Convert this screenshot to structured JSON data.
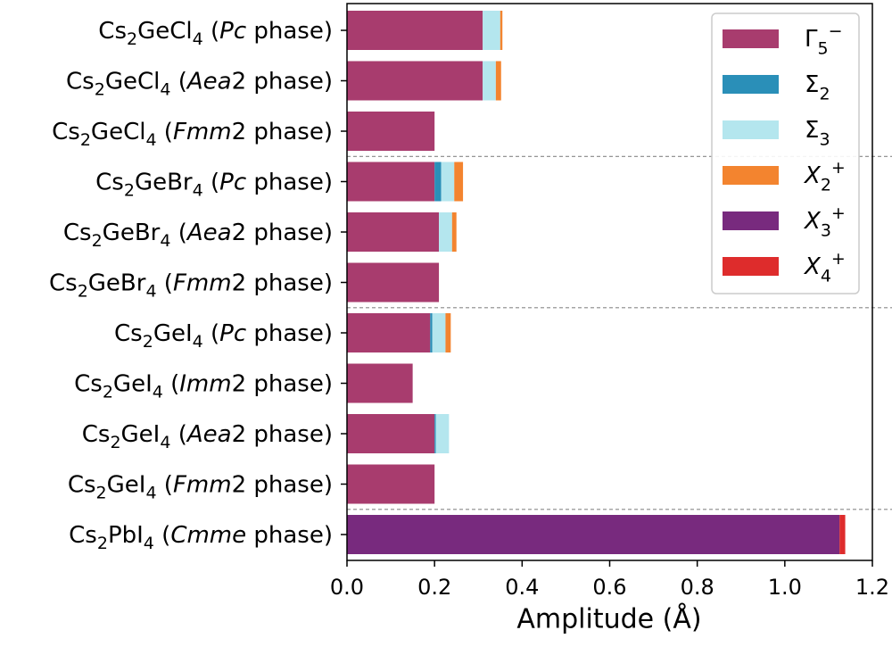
{
  "chart_data": {
    "type": "bar",
    "orientation": "horizontal",
    "stacked": true,
    "xlabel": "Amplitude (Å)",
    "xlim": [
      0,
      1.2
    ],
    "xticks": [
      "0.0",
      "0.2",
      "0.4",
      "0.6",
      "0.8",
      "1.0",
      "1.2"
    ],
    "tick_values": [
      0,
      0.2,
      0.4,
      0.6,
      0.8,
      1.0,
      1.2
    ],
    "categories": [
      {
        "formula": [
          [
            "Cs",
            "n"
          ],
          [
            "2",
            "sub"
          ],
          [
            "GeCl",
            "n"
          ],
          [
            "4",
            "sub"
          ]
        ],
        "open": " (",
        "space": "Pc",
        "close": " phase)"
      },
      {
        "formula": [
          [
            "Cs",
            "n"
          ],
          [
            "2",
            "sub"
          ],
          [
            "GeCl",
            "n"
          ],
          [
            "4",
            "sub"
          ]
        ],
        "open": " (",
        "space": "Aea",
        "space_tail": "2",
        "close": " phase)"
      },
      {
        "formula": [
          [
            "Cs",
            "n"
          ],
          [
            "2",
            "sub"
          ],
          [
            "GeCl",
            "n"
          ],
          [
            "4",
            "sub"
          ]
        ],
        "open": " (",
        "space": "Fmm",
        "space_tail": "2",
        "close": " phase)"
      },
      {
        "formula": [
          [
            "Cs",
            "n"
          ],
          [
            "2",
            "sub"
          ],
          [
            "GeBr",
            "n"
          ],
          [
            "4",
            "sub"
          ]
        ],
        "open": " (",
        "space": "Pc",
        "close": " phase)"
      },
      {
        "formula": [
          [
            "Cs",
            "n"
          ],
          [
            "2",
            "sub"
          ],
          [
            "GeBr",
            "n"
          ],
          [
            "4",
            "sub"
          ]
        ],
        "open": " (",
        "space": "Aea",
        "space_tail": "2",
        "close": " phase)"
      },
      {
        "formula": [
          [
            "Cs",
            "n"
          ],
          [
            "2",
            "sub"
          ],
          [
            "GeBr",
            "n"
          ],
          [
            "4",
            "sub"
          ]
        ],
        "open": " (",
        "space": "Fmm",
        "space_tail": "2",
        "close": " phase)"
      },
      {
        "formula": [
          [
            "Cs",
            "n"
          ],
          [
            "2",
            "sub"
          ],
          [
            "GeI",
            "n"
          ],
          [
            "4",
            "sub"
          ]
        ],
        "open": " (",
        "space": "Pc",
        "close": " phase)"
      },
      {
        "formula": [
          [
            "Cs",
            "n"
          ],
          [
            "2",
            "sub"
          ],
          [
            "GeI",
            "n"
          ],
          [
            "4",
            "sub"
          ]
        ],
        "open": " (",
        "space": "Imm",
        "space_tail": "2",
        "close": " phase)"
      },
      {
        "formula": [
          [
            "Cs",
            "n"
          ],
          [
            "2",
            "sub"
          ],
          [
            "GeI",
            "n"
          ],
          [
            "4",
            "sub"
          ]
        ],
        "open": " (",
        "space": "Aea",
        "space_tail": "2",
        "close": " phase)"
      },
      {
        "formula": [
          [
            "Cs",
            "n"
          ],
          [
            "2",
            "sub"
          ],
          [
            "GeI",
            "n"
          ],
          [
            "4",
            "sub"
          ]
        ],
        "open": " (",
        "space": "Fmm",
        "space_tail": "2",
        "close": " phase)"
      },
      {
        "formula": [
          [
            "Cs",
            "n"
          ],
          [
            "2",
            "sub"
          ],
          [
            "PbI",
            "n"
          ],
          [
            "4",
            "sub"
          ]
        ],
        "open": " (",
        "space": "Cmme",
        "close": " phase)"
      }
    ],
    "group_separators_after": [
      2,
      5,
      9
    ],
    "series": [
      {
        "name": "Γ5−",
        "color": "#a83c6e",
        "label_parts": [
          [
            "Γ",
            "n"
          ],
          [
            "5",
            "sub"
          ],
          [
            "−",
            "sup"
          ]
        ],
        "values": [
          0.31,
          0.31,
          0.2,
          0.2,
          0.21,
          0.21,
          0.19,
          0.15,
          0.2,
          0.2,
          0.0
        ]
      },
      {
        "name": "Σ2",
        "color": "#2a8fb8",
        "label_parts": [
          [
            "Σ",
            "n"
          ],
          [
            "2",
            "sub"
          ]
        ],
        "values": [
          0.0,
          0.0,
          0.0,
          0.015,
          0.0,
          0.0,
          0.005,
          0.0,
          0.003,
          0.0,
          0.0
        ]
      },
      {
        "name": "Σ3",
        "color": "#b4e6ee",
        "label_parts": [
          [
            "Σ",
            "n"
          ],
          [
            "3",
            "sub"
          ]
        ],
        "values": [
          0.04,
          0.03,
          0.0,
          0.03,
          0.03,
          0.0,
          0.03,
          0.0,
          0.03,
          0.0,
          0.0
        ]
      },
      {
        "name": "X2+",
        "color": "#f3842f",
        "label_parts": [
          [
            "X",
            "i"
          ],
          [
            "2",
            "sub"
          ],
          [
            "+",
            "sup"
          ]
        ],
        "values": [
          0.005,
          0.012,
          0.0,
          0.02,
          0.01,
          0.0,
          0.012,
          0.0,
          0.0,
          0.0,
          0.0
        ]
      },
      {
        "name": "X3+",
        "color": "#782a7e",
        "label_parts": [
          [
            "X",
            "i"
          ],
          [
            "3",
            "sub"
          ],
          [
            "+",
            "sup"
          ]
        ],
        "values": [
          0.0,
          0.0,
          0.0,
          0.0,
          0.0,
          0.0,
          0.0,
          0.0,
          0.0,
          0.0,
          1.125
        ]
      },
      {
        "name": "X4+",
        "color": "#de2c2c",
        "label_parts": [
          [
            "X",
            "i"
          ],
          [
            "4",
            "sub"
          ],
          [
            "+",
            "sup"
          ]
        ],
        "values": [
          0.0,
          0.0,
          0.0,
          0.0,
          0.0,
          0.0,
          0.0,
          0.0,
          0.0,
          0.0,
          0.013
        ]
      }
    ],
    "legend_position": "top-right",
    "grid": false
  }
}
